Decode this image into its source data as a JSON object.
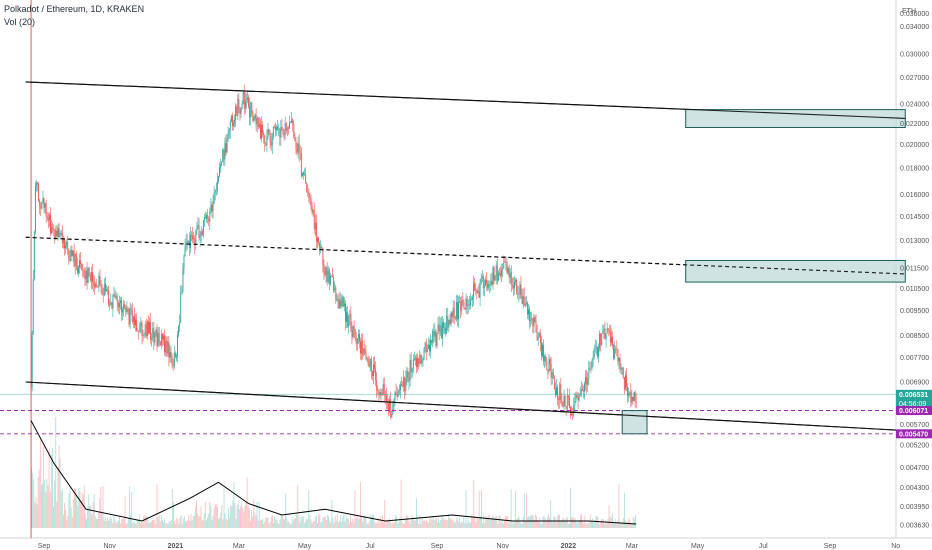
{
  "header": {
    "title": "Polkadot / Ethereum, 1D, KRAKEN",
    "volume_label": "Vol (20)"
  },
  "axis": {
    "currency": "ETH",
    "y_ticks": [
      "0.036000",
      "0.034000",
      "0.030000",
      "0.027000",
      "0.024000",
      "0.022000",
      "0.020000",
      "0.018000",
      "0.016000",
      "0.014500",
      "0.013000",
      "0.011500",
      "0.010500",
      "0.009500",
      "0.008500",
      "0.007700",
      "0.006900",
      "0.005700",
      "0.005200",
      "0.004700",
      "0.004300",
      "0.003950",
      "0.003630"
    ],
    "x_ticks": [
      "Sep",
      "Nov",
      "2021",
      "Mar",
      "May",
      "Jul",
      "Sep",
      "Nov",
      "2022",
      "Mar",
      "May",
      "Jul",
      "Sep",
      "No"
    ]
  },
  "badges": {
    "last_price": "0.006531",
    "countdown": "04:56:09",
    "level_upper": "0.006071",
    "level_lower": "0.005470"
  },
  "colors": {
    "up": "#26a69a",
    "down": "#ef5350",
    "price_badge": "#26a69a",
    "level_badge": "#9c27b0",
    "box_fill": "#c5dedd",
    "box_stroke": "#1f5f5a",
    "ma_line": "#000000",
    "vertical_marker": "#ef5350"
  },
  "chart_data": {
    "type": "candlestick",
    "symbol": "DOT/ETH",
    "timeframe": "1D",
    "exchange": "KRAKEN",
    "log_scale": true,
    "price_path": [
      {
        "x": "2020-08-20",
        "y": 0.0069
      },
      {
        "x": "2020-08-24",
        "y": 0.0165
      },
      {
        "x": "2020-09-10",
        "y": 0.0135
      },
      {
        "x": "2020-10-01",
        "y": 0.0118
      },
      {
        "x": "2020-10-25",
        "y": 0.0105
      },
      {
        "x": "2020-11-20",
        "y": 0.0092
      },
      {
        "x": "2020-12-20",
        "y": 0.0083
      },
      {
        "x": "2021-01-01",
        "y": 0.0075
      },
      {
        "x": "2021-01-10",
        "y": 0.0125
      },
      {
        "x": "2021-02-01",
        "y": 0.0145
      },
      {
        "x": "2021-02-20",
        "y": 0.0215
      },
      {
        "x": "2021-03-05",
        "y": 0.0248
      },
      {
        "x": "2021-03-25",
        "y": 0.0205
      },
      {
        "x": "2021-04-20",
        "y": 0.0215
      },
      {
        "x": "2021-05-05",
        "y": 0.0155
      },
      {
        "x": "2021-05-20",
        "y": 0.0115
      },
      {
        "x": "2021-06-10",
        "y": 0.0092
      },
      {
        "x": "2021-06-25",
        "y": 0.0078
      },
      {
        "x": "2021-07-20",
        "y": 0.0061
      },
      {
        "x": "2021-08-10",
        "y": 0.0075
      },
      {
        "x": "2021-09-01",
        "y": 0.0085
      },
      {
        "x": "2021-09-25",
        "y": 0.0098
      },
      {
        "x": "2021-10-20",
        "y": 0.011
      },
      {
        "x": "2021-11-05",
        "y": 0.0115
      },
      {
        "x": "2021-11-25",
        "y": 0.0095
      },
      {
        "x": "2021-12-20",
        "y": 0.0068
      },
      {
        "x": "2022-01-05",
        "y": 0.006
      },
      {
        "x": "2022-01-25",
        "y": 0.0078
      },
      {
        "x": "2022-02-05",
        "y": 0.0087
      },
      {
        "x": "2022-02-20",
        "y": 0.0072
      },
      {
        "x": "2022-03-01",
        "y": 0.0062
      },
      {
        "x": "2022-03-05",
        "y": 0.0065
      }
    ],
    "volume_ma_path": [
      {
        "x": "2020-08-20",
        "y": 0.0058
      },
      {
        "x": "2020-09-10",
        "y": 0.0048
      },
      {
        "x": "2020-10-10",
        "y": 0.0039
      },
      {
        "x": "2020-12-01",
        "y": 0.0037
      },
      {
        "x": "2021-01-15",
        "y": 0.0041
      },
      {
        "x": "2021-02-10",
        "y": 0.0044
      },
      {
        "x": "2021-03-10",
        "y": 0.004
      },
      {
        "x": "2021-04-10",
        "y": 0.0038
      },
      {
        "x": "2021-05-20",
        "y": 0.0039
      },
      {
        "x": "2021-07-15",
        "y": 0.0037
      },
      {
        "x": "2021-09-15",
        "y": 0.0038
      },
      {
        "x": "2021-11-10",
        "y": 0.0037
      },
      {
        "x": "2022-01-20",
        "y": 0.0037
      },
      {
        "x": "2022-03-05",
        "y": 0.00365
      }
    ],
    "trendlines": [
      {
        "name": "upper",
        "style": "solid",
        "from": {
          "x": "2020-08-15",
          "y": 0.0265
        },
        "to": {
          "x": "2022-11-10",
          "y": 0.0225
        }
      },
      {
        "name": "middle",
        "style": "dashed",
        "from": {
          "x": "2020-08-15",
          "y": 0.0132
        },
        "to": {
          "x": "2022-11-10",
          "y": 0.0112
        }
      },
      {
        "name": "lower",
        "style": "solid",
        "from": {
          "x": "2020-08-15",
          "y": 0.0069
        },
        "to": {
          "x": "2022-11-10",
          "y": 0.00555
        }
      }
    ],
    "horizontal_levels": [
      {
        "name": "level_upper",
        "value": 0.006071,
        "style": "dashed"
      },
      {
        "name": "level_lower",
        "value": 0.00547,
        "style": "dashed"
      },
      {
        "name": "last_price",
        "value": 0.006531,
        "style": "solid"
      }
    ],
    "target_boxes": [
      {
        "name": "upper-target",
        "x_from": "2022-04-20",
        "x_to": "2022-11-10",
        "y_from": 0.0216,
        "y_to": 0.0234
      },
      {
        "name": "middle-target",
        "x_from": "2022-04-20",
        "x_to": "2022-11-10",
        "y_from": 0.0108,
        "y_to": 0.0119
      },
      {
        "name": "lower-target",
        "x_from": "2022-02-20",
        "x_to": "2022-03-15",
        "y_from": 0.00547,
        "y_to": 0.00607
      }
    ],
    "vertical_marker": "2020-08-20",
    "y_range": [
      0.00355,
      0.0375
    ]
  }
}
